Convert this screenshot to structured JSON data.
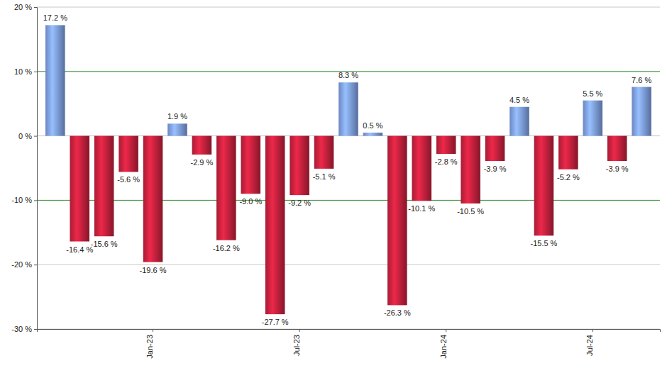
{
  "chart_data": {
    "type": "bar",
    "categories": [
      null,
      null,
      null,
      null,
      "Jan-23",
      null,
      null,
      null,
      null,
      null,
      "Jul-23",
      null,
      null,
      null,
      null,
      null,
      "Jan-24",
      null,
      null,
      null,
      null,
      null,
      "Jul-24",
      null,
      null
    ],
    "values": [
      17.2,
      -16.4,
      -15.6,
      -5.6,
      -19.6,
      1.9,
      -2.9,
      -16.2,
      -9.0,
      -27.7,
      -9.2,
      -5.1,
      8.3,
      0.5,
      -26.3,
      -10.1,
      -2.8,
      -10.5,
      -3.9,
      4.5,
      -15.5,
      -5.2,
      5.5,
      -3.9,
      7.6
    ],
    "value_labels": [
      "17.2 %",
      "-16.4 %",
      "-15.6 %",
      "-5.6 %",
      "-19.6 %",
      "1.9 %",
      "-2.9 %",
      "-16.2 %",
      "-9.0 %",
      "-27.7 %",
      "-9.2 %",
      "-5.1 %",
      "8.3 %",
      "0.5 %",
      "-26.3 %",
      "-10.1 %",
      "-2.8 %",
      "-10.5 %",
      "-3.9 %",
      "4.5 %",
      "-15.5 %",
      "-5.2 %",
      "5.5 %",
      "-3.9 %",
      "7.6 %"
    ],
    "colors": [
      "#7b9be0",
      "#c0203c",
      "#c0203c",
      "#c0203c",
      "#c0203c",
      "#7b9be0",
      "#c0203c",
      "#c0203c",
      "#c0203c",
      "#c0203c",
      "#c0203c",
      "#c0203c",
      "#7b9be0",
      "#7b9be0",
      "#c0203c",
      "#c0203c",
      "#c0203c",
      "#c0203c",
      "#c0203c",
      "#7b9be0",
      "#c0203c",
      "#c0203c",
      "#7b9be0",
      "#c0203c",
      "#7b9be0"
    ],
    "ylim": [
      -30,
      20
    ],
    "yticks": [
      {
        "value": -30,
        "label": "-30 %"
      },
      {
        "value": -20,
        "label": "-20 %"
      },
      {
        "value": -10,
        "label": "-10 %"
      },
      {
        "value": 0,
        "label": "0 %"
      },
      {
        "value": 10,
        "label": "10 %"
      },
      {
        "value": 20,
        "label": "20 %"
      }
    ],
    "grid": true,
    "data_labels": true
  }
}
